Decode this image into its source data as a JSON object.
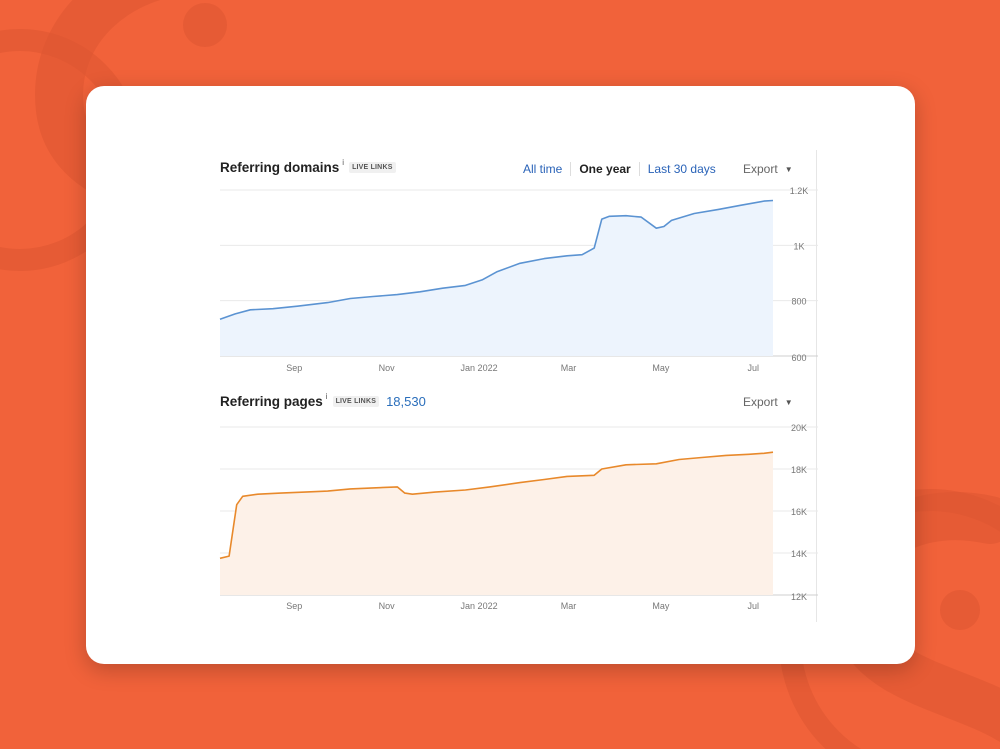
{
  "theme": {
    "background": "#f1623a",
    "blue_line": "#5b93d2",
    "blue_fill": "#edf4fd",
    "orange_line": "#e8892b",
    "orange_fill": "#fdf1e8"
  },
  "domains_section": {
    "title": "Referring domains",
    "info": "i",
    "badge": "LIVE LINKS",
    "ranges": [
      "All time",
      "One year",
      "Last 30 days"
    ],
    "active_range": "One year",
    "export_label": "Export",
    "caret": "▼"
  },
  "pages_section": {
    "title": "Referring pages",
    "info": "i",
    "badge": "LIVE LINKS",
    "total": "18,530",
    "export_label": "Export",
    "caret": "▼"
  },
  "chart_data": [
    {
      "type": "area",
      "title": "Referring domains",
      "x_labels": [
        "Sep",
        "Nov",
        "Jan 2022",
        "Mar",
        "May",
        "Jul"
      ],
      "y_ticks": [
        "1.2K",
        "1K",
        "800",
        "600"
      ],
      "ylim": [
        600,
        1200
      ],
      "xlim": [
        "2021-07-14",
        "2022-07-14"
      ],
      "grid": true,
      "series": [
        {
          "x": [
            "2021-07-14",
            "2021-07-24",
            "2021-08-03",
            "2021-08-18",
            "2021-09-03",
            "2021-09-23",
            "2021-10-08",
            "2021-10-23",
            "2021-11-08",
            "2021-11-23",
            "2021-12-08",
            "2021-12-23",
            "2022-01-03",
            "2022-01-13",
            "2022-01-28",
            "2022-02-13",
            "2022-02-28",
            "2022-03-10",
            "2022-03-18",
            "2022-03-23",
            "2022-03-28",
            "2022-04-08",
            "2022-04-18",
            "2022-04-28",
            "2022-05-03",
            "2022-05-08",
            "2022-05-23",
            "2022-06-08",
            "2022-06-23",
            "2022-07-08",
            "2022-07-14"
          ],
          "values": [
            733,
            752,
            767,
            771,
            780,
            793,
            808,
            815,
            822,
            832,
            845,
            855,
            875,
            905,
            935,
            952,
            962,
            966,
            990,
            1095,
            1105,
            1107,
            1102,
            1062,
            1068,
            1090,
            1115,
            1130,
            1145,
            1160,
            1162
          ]
        }
      ]
    },
    {
      "type": "area",
      "title": "Referring pages",
      "x_labels": [
        "Sep",
        "Nov",
        "Jan 2022",
        "Mar",
        "May",
        "Jul"
      ],
      "y_ticks": [
        "20K",
        "18K",
        "16K",
        "14K",
        "12K"
      ],
      "ylim": [
        12000,
        20000
      ],
      "xlim": [
        "2021-07-14",
        "2022-07-14"
      ],
      "grid": true,
      "series": [
        {
          "x": [
            "2021-07-14",
            "2021-07-20",
            "2021-07-25",
            "2021-07-29",
            "2021-08-08",
            "2021-08-23",
            "2021-09-08",
            "2021-09-23",
            "2021-10-08",
            "2021-10-23",
            "2021-11-08",
            "2021-11-13",
            "2021-11-18",
            "2021-12-03",
            "2021-12-23",
            "2022-01-08",
            "2022-01-28",
            "2022-02-13",
            "2022-02-28",
            "2022-03-18",
            "2022-03-23",
            "2022-04-08",
            "2022-04-28",
            "2022-05-13",
            "2022-05-28",
            "2022-06-13",
            "2022-06-28",
            "2022-07-08",
            "2022-07-14"
          ],
          "values": [
            13750,
            13850,
            16300,
            16700,
            16800,
            16850,
            16900,
            16950,
            17050,
            17100,
            17150,
            16850,
            16800,
            16900,
            17000,
            17150,
            17350,
            17500,
            17650,
            17700,
            18000,
            18200,
            18250,
            18450,
            18550,
            18650,
            18700,
            18750,
            18800
          ]
        }
      ]
    }
  ]
}
